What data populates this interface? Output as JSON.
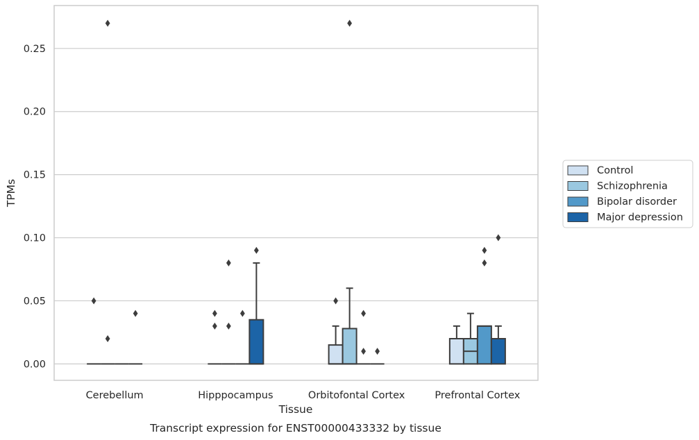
{
  "chart_data": {
    "type": "box",
    "title": "",
    "xlabel": "Tissue",
    "ylabel": "TPMs",
    "caption": "Transcript expression for ENST00000433332 by tissue",
    "ylim": [
      -0.013,
      0.284
    ],
    "yticks": [
      "0.00",
      "0.05",
      "0.10",
      "0.15",
      "0.20",
      "0.25"
    ],
    "grid": true,
    "legend_position": "right",
    "categories": [
      "Cerebellum",
      "Hipppocampus",
      "Orbitofontal Cortex",
      "Prefrontal Cortex"
    ],
    "series": [
      {
        "name": "Control",
        "color": "#d0e1f2",
        "boxes": [
          {
            "q1": 0,
            "median": 0,
            "q3": 0,
            "whisker_low": 0,
            "whisker_high": 0,
            "outliers": [
              0.05
            ]
          },
          {
            "q1": 0,
            "median": 0,
            "q3": 0,
            "whisker_low": 0,
            "whisker_high": 0,
            "outliers": [
              0.03,
              0.04
            ]
          },
          {
            "q1": 0,
            "median": 0,
            "q3": 0.015,
            "whisker_low": 0,
            "whisker_high": 0.03,
            "outliers": [
              0.05
            ]
          },
          {
            "q1": 0,
            "median": 0.02,
            "q3": 0.02,
            "whisker_low": 0,
            "whisker_high": 0.03,
            "outliers": []
          }
        ]
      },
      {
        "name": "Schizophrenia",
        "color": "#9ac8e0",
        "boxes": [
          {
            "q1": 0,
            "median": 0,
            "q3": 0,
            "whisker_low": 0,
            "whisker_high": 0,
            "outliers": [
              0.02,
              0.27
            ]
          },
          {
            "q1": 0,
            "median": 0,
            "q3": 0,
            "whisker_low": 0,
            "whisker_high": 0,
            "outliers": [
              0.03,
              0.08
            ]
          },
          {
            "q1": 0,
            "median": 0,
            "q3": 0.028,
            "whisker_low": 0,
            "whisker_high": 0.06,
            "outliers": [
              0.27
            ]
          },
          {
            "q1": 0,
            "median": 0.01,
            "q3": 0.02,
            "whisker_low": 0,
            "whisker_high": 0.04,
            "outliers": []
          }
        ]
      },
      {
        "name": "Bipolar disorder",
        "color": "#5299c9",
        "boxes": [
          {
            "q1": 0,
            "median": 0,
            "q3": 0,
            "whisker_low": 0,
            "whisker_high": 0,
            "outliers": []
          },
          {
            "q1": 0,
            "median": 0,
            "q3": 0,
            "whisker_low": 0,
            "whisker_high": 0,
            "outliers": [
              0.04
            ]
          },
          {
            "q1": 0,
            "median": 0,
            "q3": 0,
            "whisker_low": 0,
            "whisker_high": 0,
            "outliers": [
              0.01,
              0.04
            ]
          },
          {
            "q1": 0,
            "median": 0.03,
            "q3": 0.03,
            "whisker_low": 0,
            "whisker_high": 0.03,
            "outliers": [
              0.08,
              0.09
            ]
          }
        ]
      },
      {
        "name": "Major depression",
        "color": "#1c64a7",
        "boxes": [
          {
            "q1": 0,
            "median": 0,
            "q3": 0,
            "whisker_low": 0,
            "whisker_high": 0,
            "outliers": [
              0.04
            ]
          },
          {
            "q1": 0,
            "median": 0,
            "q3": 0.035,
            "whisker_low": 0,
            "whisker_high": 0.08,
            "outliers": [
              0.09
            ]
          },
          {
            "q1": 0,
            "median": 0,
            "q3": 0,
            "whisker_low": 0,
            "whisker_high": 0,
            "outliers": [
              0.01
            ]
          },
          {
            "q1": 0,
            "median": 0.02,
            "q3": 0.02,
            "whisker_low": 0,
            "whisker_high": 0.03,
            "outliers": [
              0.1
            ]
          }
        ]
      }
    ]
  }
}
